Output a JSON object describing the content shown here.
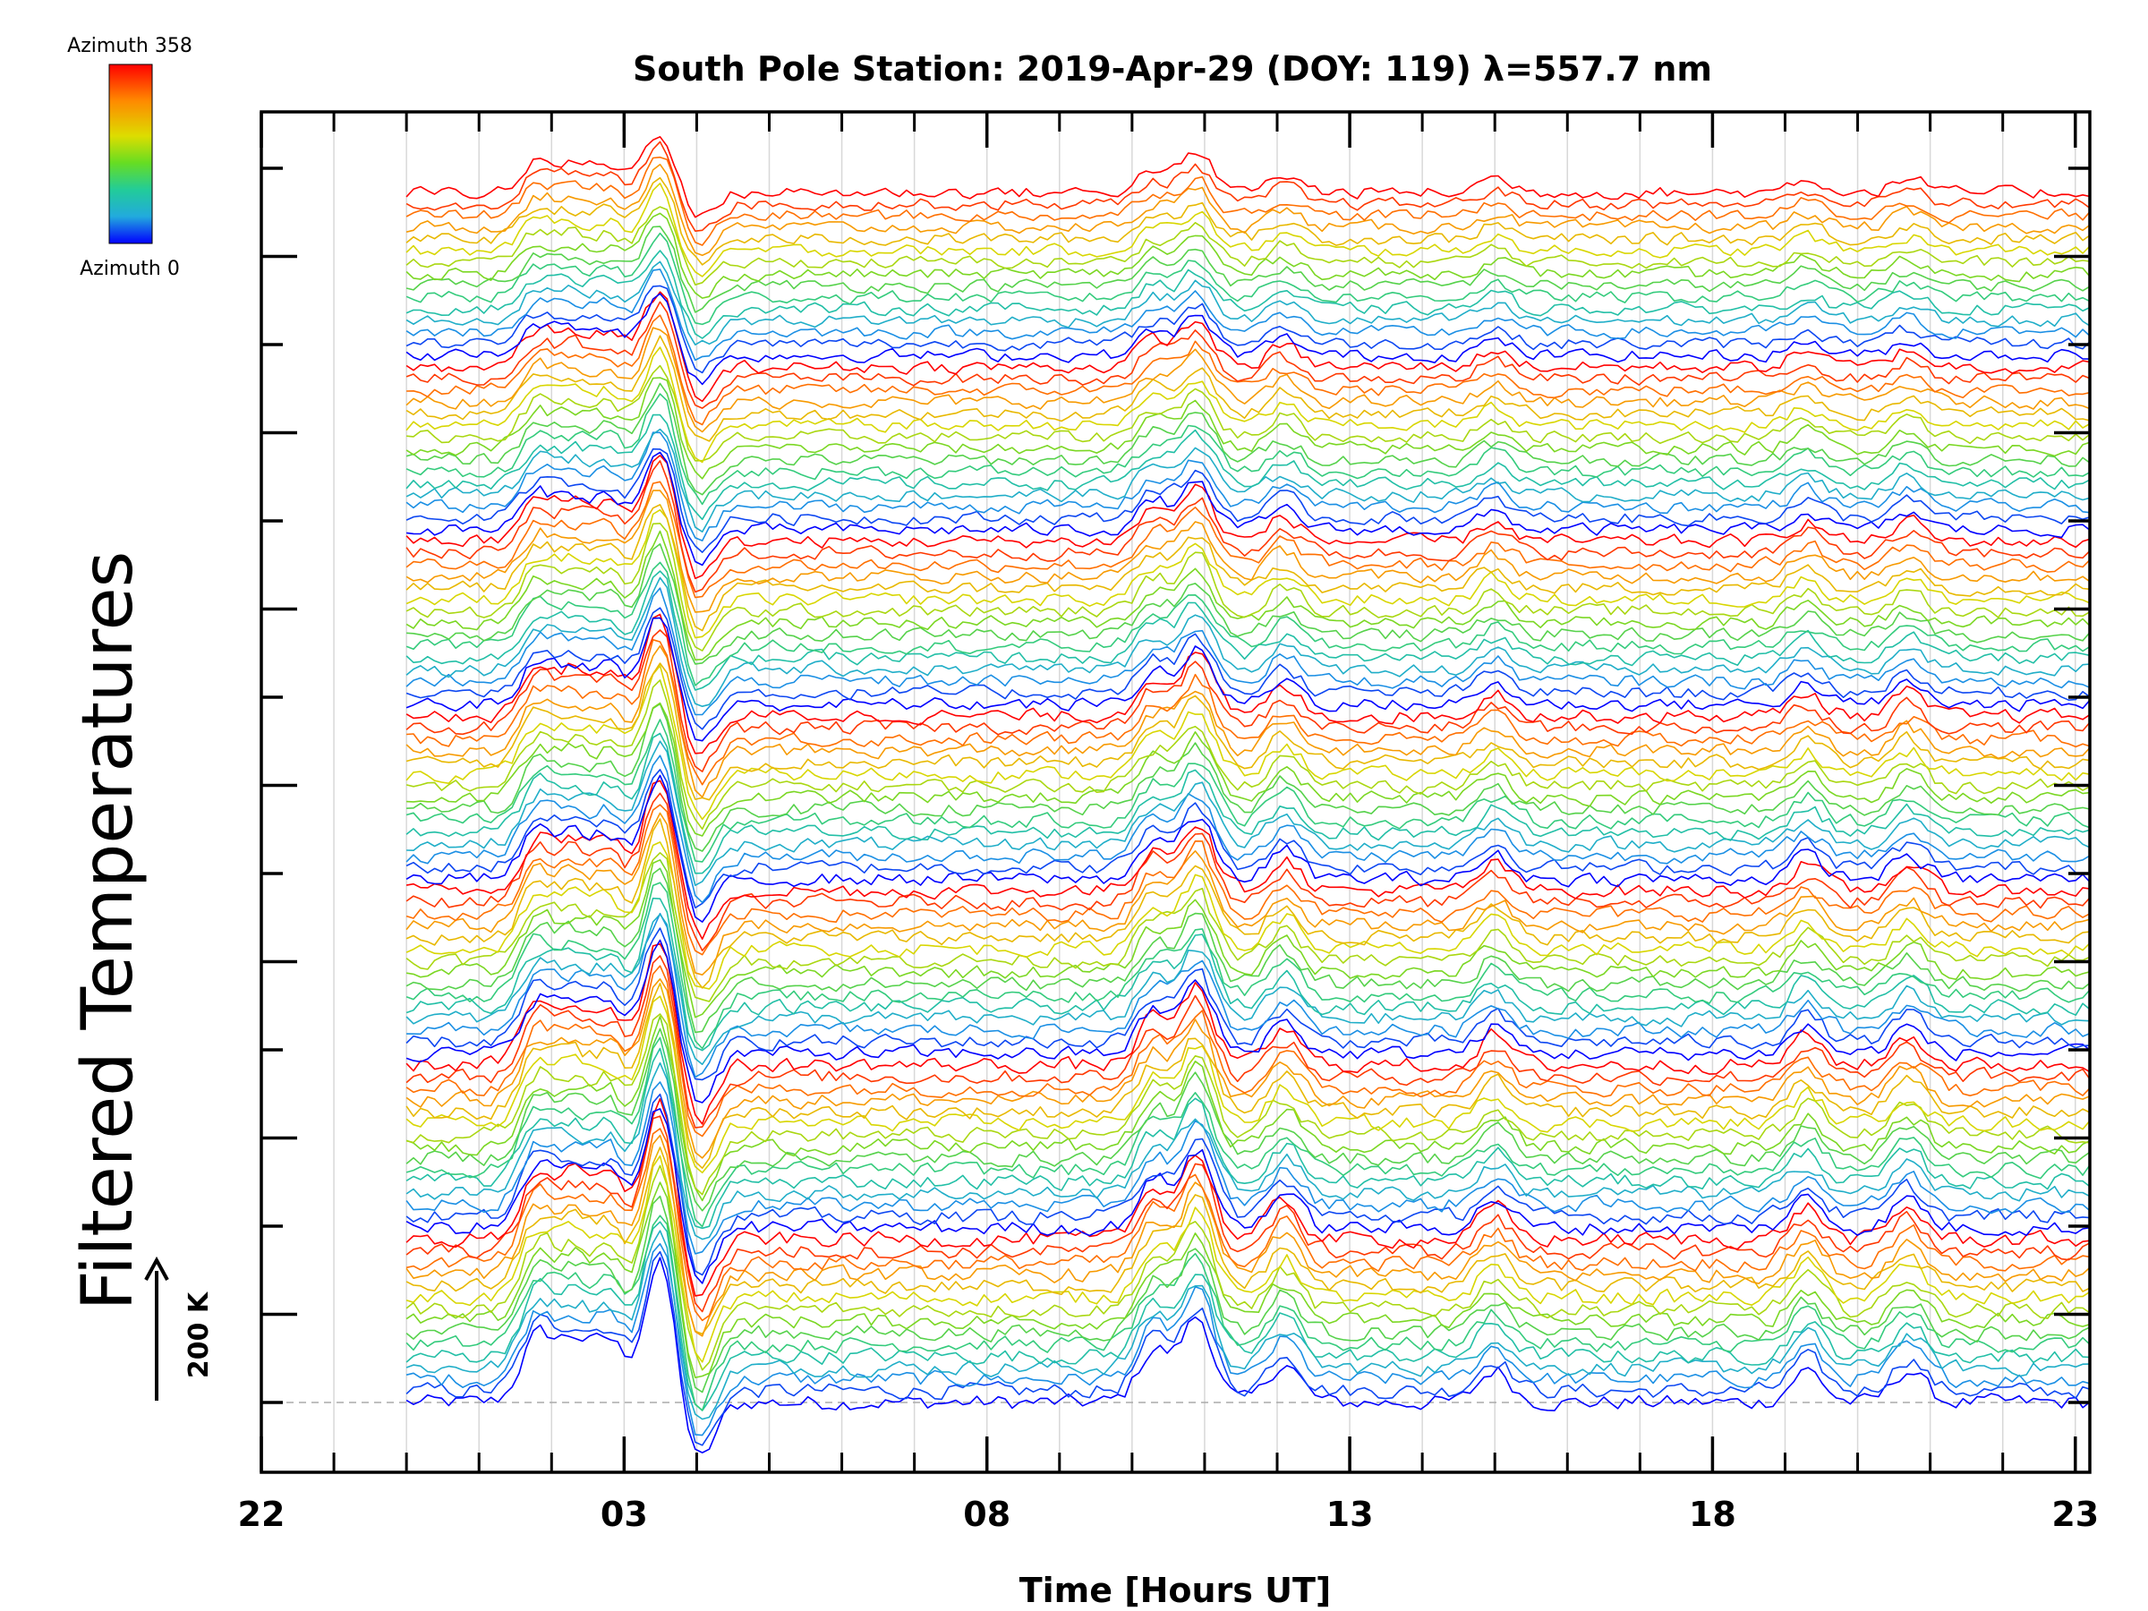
{
  "chart_data": {
    "type": "line",
    "title": "South Pole Station: 2019-Apr-29 (DOY: 119) λ=557.7 nm",
    "xlabel": "Time [Hours UT]",
    "ylabel": "Filtered Temperatures",
    "x_tick_labels": [
      "22",
      "03",
      "08",
      "13",
      "18",
      "23"
    ],
    "x_tick_values_hours": [
      22,
      27,
      32,
      37,
      42,
      47
    ],
    "xlim": [
      22,
      47.2
    ],
    "data_start_hour": 24,
    "data_end_hour": 47.2,
    "grid": true,
    "colorbar": {
      "top_label": "Azimuth 358",
      "bottom_label": "Azimuth 0",
      "colors": [
        "#ff0000",
        "#ff8800",
        "#dddd00",
        "#66dd22",
        "#22cc99",
        "#22aadd",
        "#0000ff"
      ]
    },
    "scale_bar": {
      "label": "200 K"
    },
    "num_groups": 7,
    "traces_per_group": 15,
    "disturbances": [
      {
        "hour": 25.8,
        "amplitude": 1.0
      },
      {
        "hour": 26.3,
        "amplitude": 0.9
      },
      {
        "hour": 26.8,
        "amplitude": 0.9
      },
      {
        "hour": 27.5,
        "amplitude": 2.2
      },
      {
        "hour": 28.0,
        "amplitude": -1.0
      },
      {
        "hour": 34.3,
        "amplitude": 0.8
      },
      {
        "hour": 34.9,
        "amplitude": 1.3
      },
      {
        "hour": 36.1,
        "amplitude": 0.6
      },
      {
        "hour": 39.0,
        "amplitude": 0.5
      },
      {
        "hour": 43.3,
        "amplitude": 0.5
      },
      {
        "hour": 44.7,
        "amplitude": 0.5
      }
    ]
  }
}
